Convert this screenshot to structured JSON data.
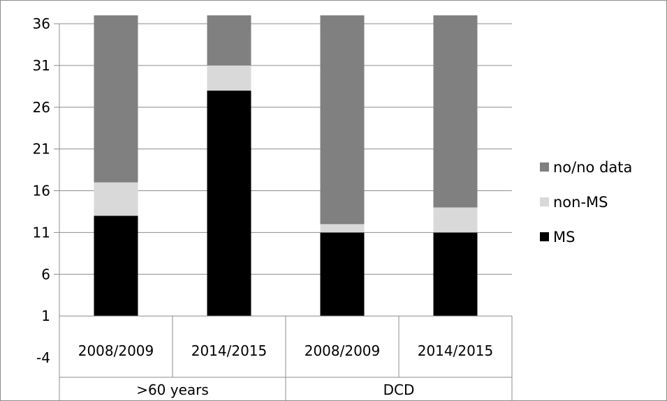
{
  "chart_data": {
    "type": "bar",
    "stacked": true,
    "categories": [
      "2008/2009",
      "2014/2015",
      "2008/2009",
      "2014/2015"
    ],
    "groups": [
      {
        "label": ">60 years",
        "span": 2
      },
      {
        "label": "DCD",
        "span": 2
      }
    ],
    "series": [
      {
        "name": "MS",
        "color": "#000000",
        "values": [
          12,
          27,
          10,
          10
        ]
      },
      {
        "name": "non-MS",
        "color": "#d9d9d9",
        "values": [
          4,
          3,
          1,
          3
        ]
      },
      {
        "name": "no/no data",
        "color": "#808080",
        "values": [
          20,
          6,
          25,
          23
        ]
      }
    ],
    "y_ticks": [
      -4,
      1,
      6,
      11,
      16,
      21,
      26,
      31,
      36
    ],
    "ylim": [
      -4,
      36
    ],
    "bar_base": 1,
    "grid": "horizontal",
    "legend": {
      "position": "right",
      "order": [
        "no/no data",
        "non-MS",
        "MS"
      ]
    }
  }
}
